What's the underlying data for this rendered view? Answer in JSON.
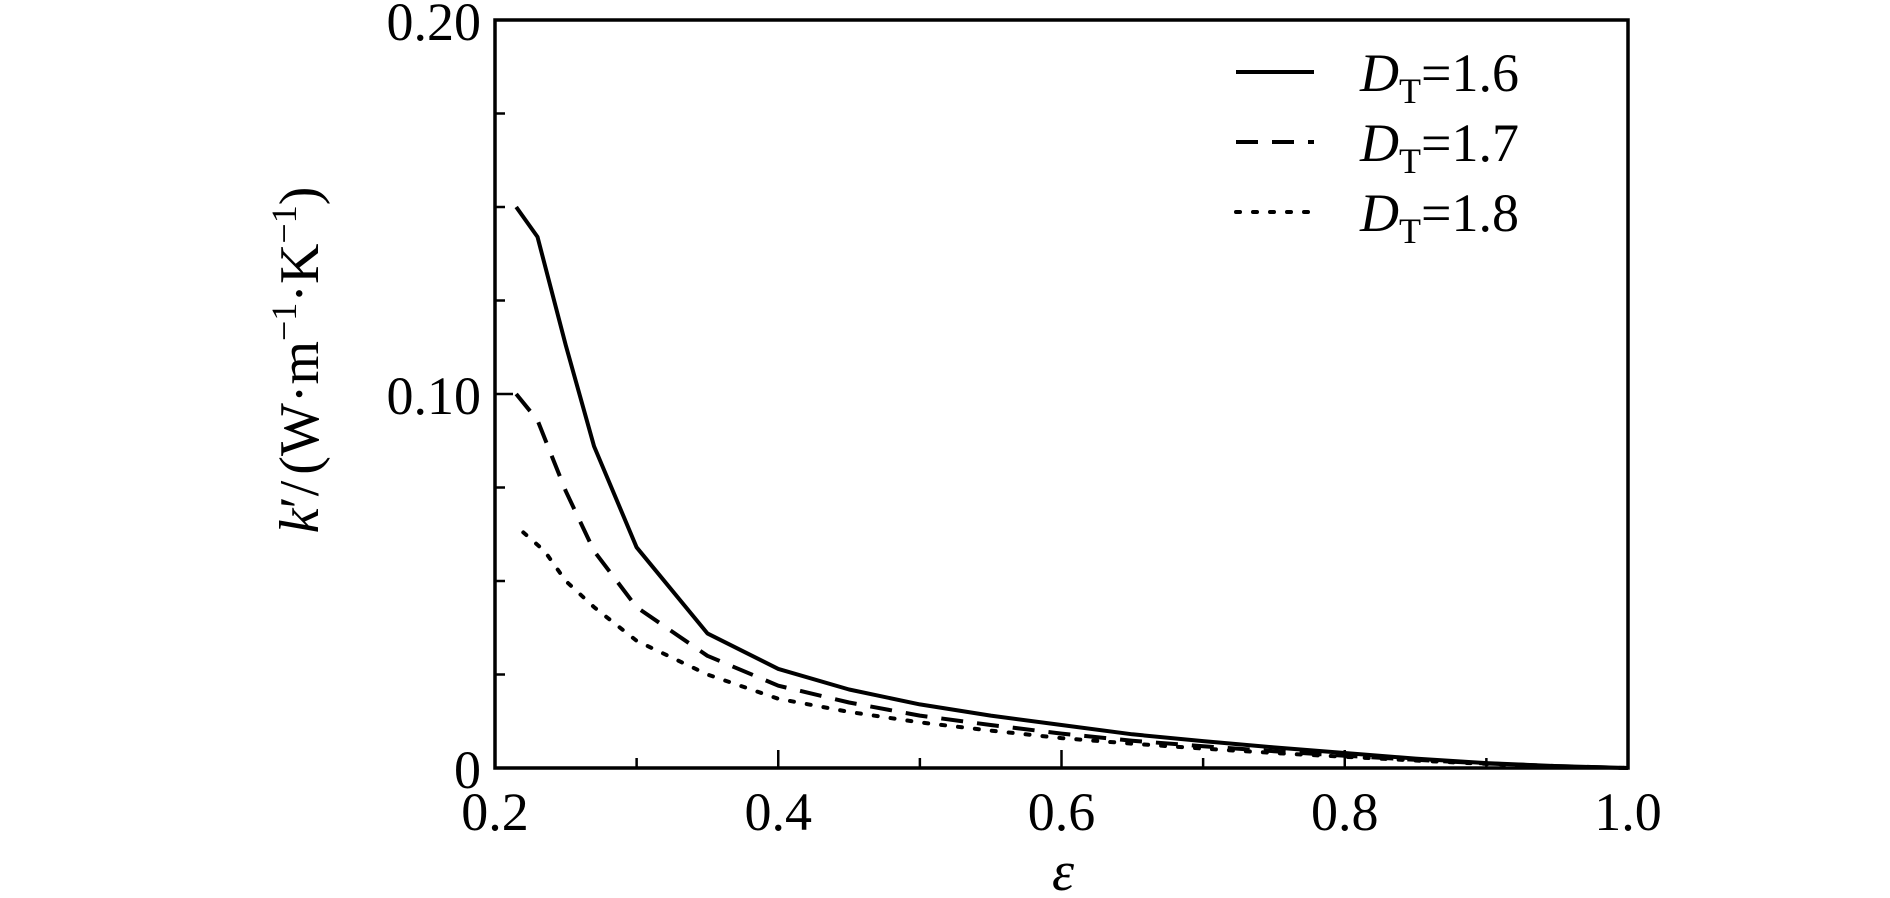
{
  "chart_data": {
    "type": "line",
    "xlabel": "ε",
    "ylabel": {
      "main": "k",
      "prime": "′",
      "slash": "/",
      "unit": "(W·m",
      "exp1": "−1",
      "middle": "·K",
      "exp2": "−1",
      "close": ")"
    },
    "xlim": [
      0.2,
      1.0
    ],
    "ylim": [
      0,
      0.2
    ],
    "x_ticks": [
      {
        "value": 0.2,
        "label": "0.2"
      },
      {
        "value": 0.4,
        "label": "0.4"
      },
      {
        "value": 0.6,
        "label": "0.6"
      },
      {
        "value": 0.8,
        "label": "0.8"
      },
      {
        "value": 1.0,
        "label": "1.0"
      }
    ],
    "x_minor_ticks": [
      0.3,
      0.5,
      0.7,
      0.9
    ],
    "y_ticks": [
      {
        "value": 0,
        "label": "0"
      },
      {
        "value": 0.1,
        "label": "0.10"
      },
      {
        "value": 0.2,
        "label": "0.20"
      }
    ],
    "y_minor_ticks": [
      0.025,
      0.05,
      0.075,
      0.125,
      0.15,
      0.175
    ],
    "grid": false,
    "legend_position": "top-right",
    "series": [
      {
        "name": "DT=1.6",
        "legend": {
          "symbol": "D",
          "subscript": "T",
          "value": "=1.6"
        },
        "style": "solid",
        "x": [
          0.215,
          0.23,
          0.25,
          0.27,
          0.3,
          0.35,
          0.4,
          0.45,
          0.5,
          0.55,
          0.6,
          0.65,
          0.7,
          0.75,
          0.8,
          0.85,
          0.9,
          0.95,
          1.0
        ],
        "y": [
          0.15,
          0.142,
          0.113,
          0.086,
          0.059,
          0.036,
          0.0265,
          0.021,
          0.017,
          0.014,
          0.0115,
          0.009,
          0.0072,
          0.0055,
          0.004,
          0.0025,
          0.0013,
          0.0005,
          0.0
        ]
      },
      {
        "name": "DT=1.7",
        "legend": {
          "symbol": "D",
          "subscript": "T",
          "value": "=1.7"
        },
        "style": "dashed",
        "x": [
          0.215,
          0.23,
          0.25,
          0.27,
          0.3,
          0.35,
          0.4,
          0.45,
          0.5,
          0.55,
          0.6,
          0.65,
          0.7,
          0.75,
          0.8,
          0.85,
          0.9,
          0.95,
          1.0
        ],
        "y": [
          0.1,
          0.093,
          0.074,
          0.058,
          0.043,
          0.03,
          0.022,
          0.0175,
          0.014,
          0.0115,
          0.0092,
          0.0073,
          0.0058,
          0.0045,
          0.0033,
          0.0022,
          0.0012,
          0.0005,
          0.0
        ]
      },
      {
        "name": "DT=1.8",
        "legend": {
          "symbol": "D",
          "subscript": "T",
          "value": "=1.8"
        },
        "style": "dotted",
        "x": [
          0.22,
          0.235,
          0.25,
          0.27,
          0.3,
          0.35,
          0.4,
          0.45,
          0.5,
          0.55,
          0.6,
          0.65,
          0.7,
          0.75,
          0.8,
          0.85,
          0.9,
          0.95,
          1.0
        ],
        "y": [
          0.063,
          0.058,
          0.05,
          0.043,
          0.034,
          0.025,
          0.0185,
          0.015,
          0.0122,
          0.01,
          0.008,
          0.0065,
          0.0052,
          0.004,
          0.003,
          0.002,
          0.0011,
          0.0004,
          0.0
        ]
      }
    ]
  }
}
